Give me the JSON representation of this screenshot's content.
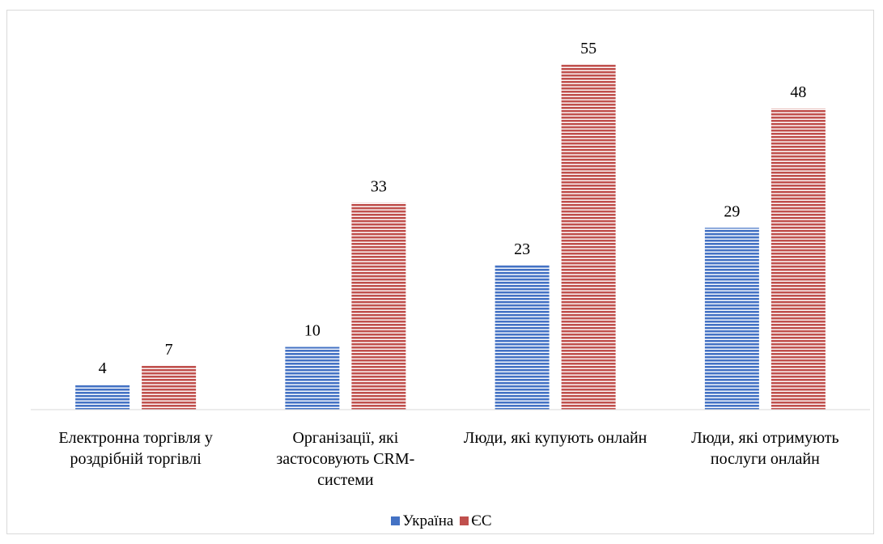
{
  "chart_data": {
    "type": "bar",
    "categories": [
      "Електронна торгівля у роздрібній торгівлі",
      "Організації, які застосовують CRM-системи",
      "Люди, які купують онлайн",
      "Люди, які отримують послуги онлайн"
    ],
    "series": [
      {
        "name": "Україна",
        "color": "#4472c4",
        "values": [
          4,
          10,
          23,
          29
        ]
      },
      {
        "name": "ЄС",
        "color": "#c0504d",
        "values": [
          7,
          33,
          55,
          48
        ]
      }
    ],
    "ylim": [
      0,
      60
    ],
    "legend": "bottom"
  }
}
